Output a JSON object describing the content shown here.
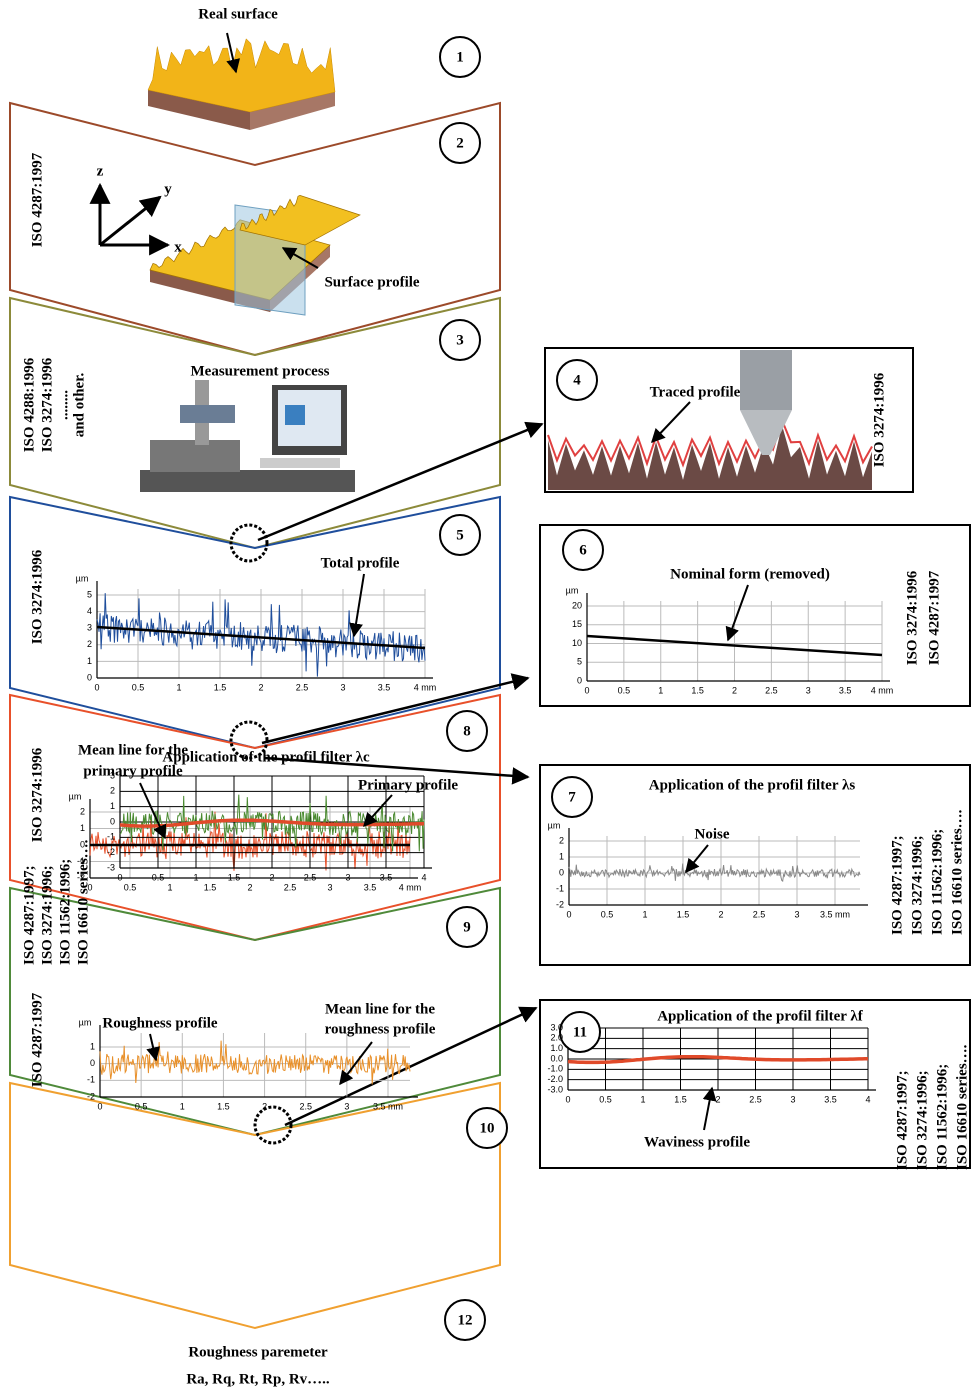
{
  "steps": [
    "1",
    "2",
    "3",
    "4",
    "5",
    "6",
    "7",
    "8",
    "9",
    "10",
    "11",
    "12"
  ],
  "real_surface": "Real surface",
  "panel2": {
    "iso": [
      "ISO 4287:1997"
    ],
    "axes": [
      "z",
      "y",
      "x"
    ],
    "label": "Surface profile"
  },
  "panel3": {
    "iso": [
      "ISO 4288:1996",
      "ISO 3274:1996",
      "........",
      "and other."
    ],
    "label": "Measurement process"
  },
  "panel4": {
    "label": "Traced profile",
    "iso": [
      "ISO 3274:1996"
    ]
  },
  "panel5": {
    "iso": [
      "ISO 3274:1996"
    ],
    "label": "Total profile",
    "chart": {
      "unit": "µm",
      "yticks": [
        "0",
        "1",
        "2",
        "3",
        "4",
        "5"
      ],
      "xticks": [
        "0",
        "0.5",
        "1",
        "1.5",
        "2",
        "2.5",
        "3",
        "3.5",
        "4 mm"
      ]
    }
  },
  "panel6": {
    "label": "Nominal form (removed)",
    "iso": [
      "ISO 3274:1996",
      "ISO 4287:1997"
    ],
    "chart": {
      "unit": "µm",
      "yticks": [
        "0",
        "5",
        "10",
        "15",
        "20"
      ],
      "xticks": [
        "0",
        "0.5",
        "1",
        "1.5",
        "2",
        "2.5",
        "3",
        "3.5",
        "4 mm"
      ]
    }
  },
  "panel7": {
    "title": "Application of the profil filter λs",
    "label": "Noise",
    "iso": [
      "ISO 4287:1997;",
      "ISO 3274:1996;",
      "ISO 11562:1996;",
      "ISO 16610 series…."
    ],
    "chart": {
      "unit": "µm",
      "yticks": [
        "-2",
        "-1",
        "0",
        "1",
        "2"
      ],
      "xticks": [
        "0",
        "0.5",
        "1",
        "1.5",
        "2",
        "2.5",
        "3",
        "3.5 mm"
      ]
    }
  },
  "panel8": {
    "iso": [
      "ISO 3274:1996"
    ],
    "mean_label": [
      "Mean line for the",
      "primary profile"
    ],
    "label": "Primary profile",
    "chart": {
      "unit": "µm",
      "yticks": [
        "-2",
        "-1",
        "0",
        "1",
        "2"
      ],
      "xticks": [
        "0",
        "0.5",
        "1",
        "1.5",
        "2",
        "2.5",
        "3",
        "3.5",
        "4 mm"
      ]
    }
  },
  "panel9": {
    "iso": [
      "ISO 4287:1997;",
      "ISO 3274:1996;",
      "ISO 11562:1996;",
      "ISO 16610 series…."
    ],
    "title": "Application of the profil filter λc",
    "chart": {
      "yticks": [
        "-3",
        "-2",
        "-1",
        "0",
        "1",
        "2",
        "3"
      ],
      "xticks": [
        "0",
        "0.5",
        "1",
        "1.5",
        "2",
        "2.5",
        "3",
        "3.5",
        "4"
      ]
    }
  },
  "panel11": {
    "title": "Application of the  profil filter λf",
    "label": "Waviness profile",
    "iso": [
      "ISO 4287:1997;",
      "ISO 3274:1996;",
      "ISO 11562:1996;",
      "ISO 16610 series…."
    ],
    "chart": {
      "yticks": [
        "-3.0",
        "-2.0",
        "-1.0",
        "0.0",
        "1.0",
        "2.0",
        "3.0"
      ],
      "xticks": [
        "0",
        "0.5",
        "1",
        "1.5",
        "2",
        "2.5",
        "3",
        "3.5",
        "4"
      ]
    }
  },
  "panel12": {
    "iso": [
      "ISO 4287:1997"
    ],
    "label": "Roughness profile",
    "mean_label": [
      "Mean line for the",
      "roughness profile"
    ],
    "chart": {
      "unit": "µm",
      "yticks": [
        "-2",
        "-1",
        "0",
        "1"
      ],
      "xticks": [
        "0",
        "0.5",
        "1",
        "1.5",
        "2",
        "2.5",
        "3",
        "3.5 mm"
      ]
    }
  },
  "result": {
    "title": "Roughness paremeter",
    "params": "Ra, Rq, Rt, Rp, Rv….."
  }
}
